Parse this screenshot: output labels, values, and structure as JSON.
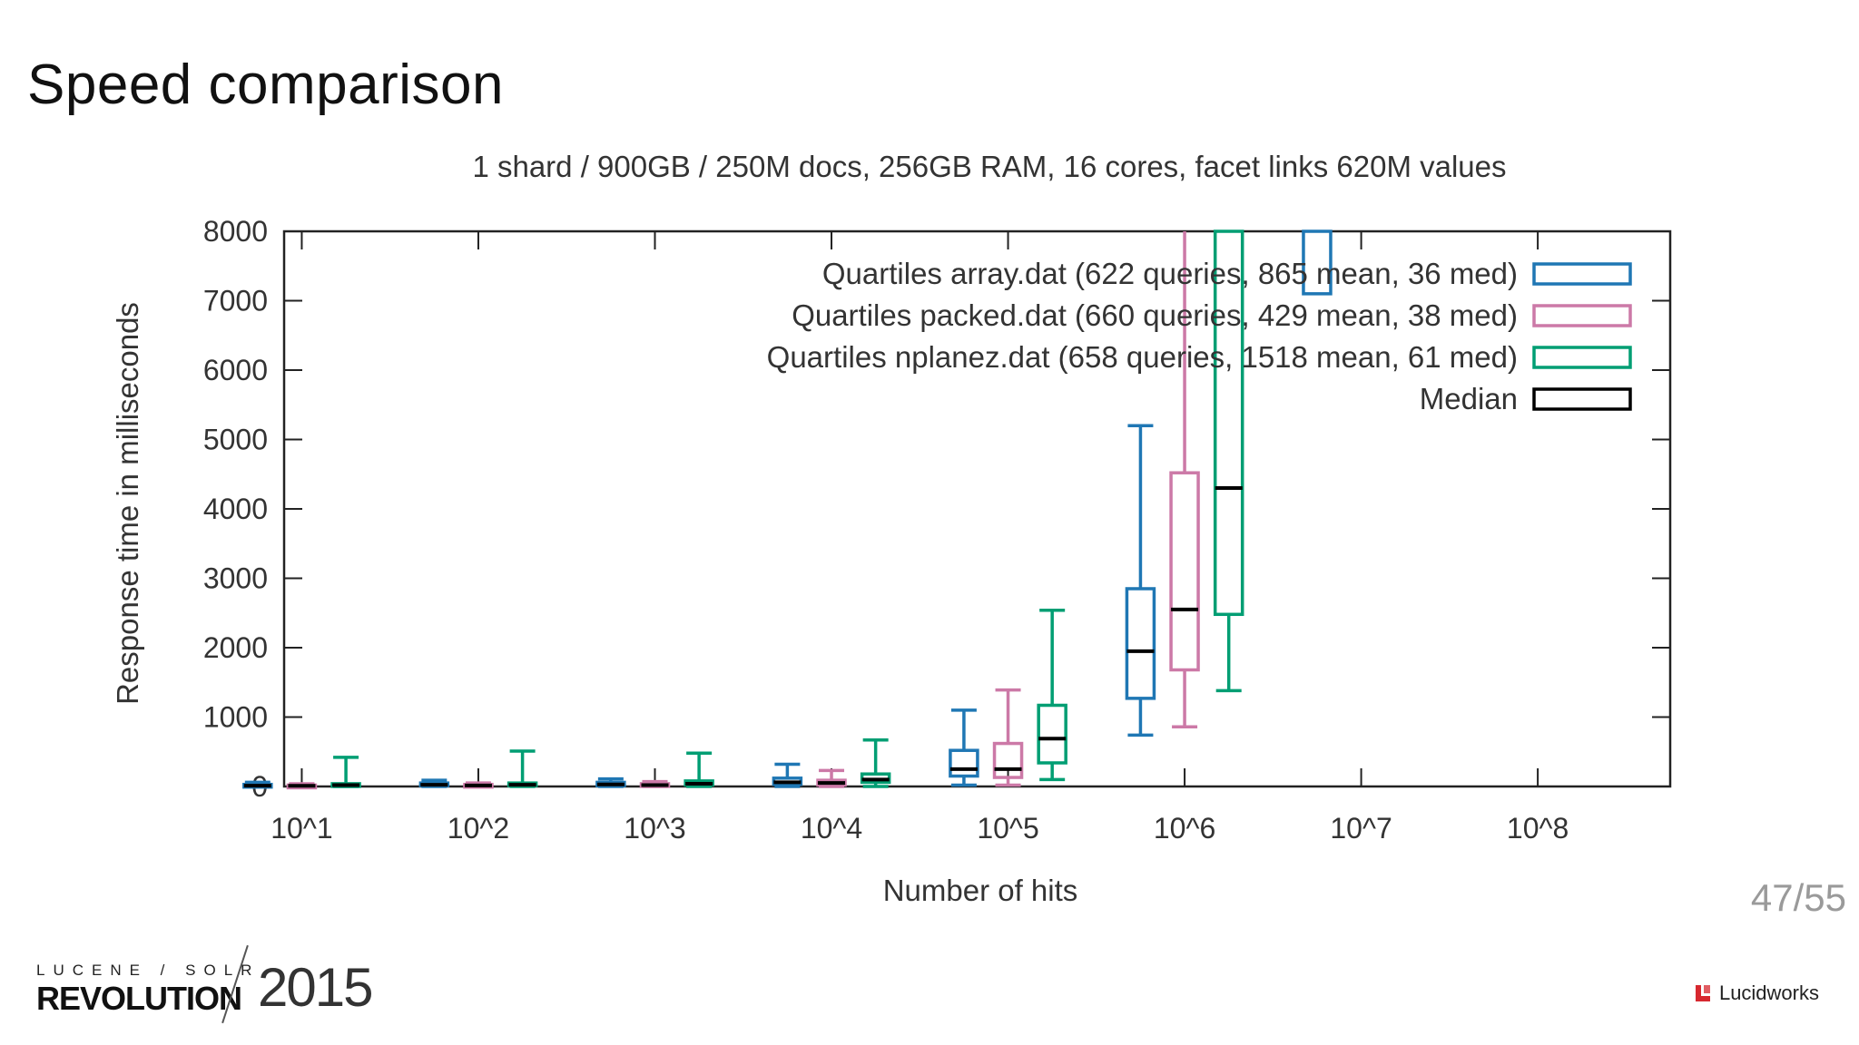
{
  "slide": {
    "title": "Speed comparison",
    "page": "47/55"
  },
  "branding": {
    "conference_top": "LUCENE / SOLR",
    "conference_main": "REVOLUTION",
    "conference_year": "2015",
    "company": "Lucidworks",
    "company_color": "#d7282f"
  },
  "chart_data": {
    "type": "boxplot",
    "title": "1 shard / 900GB / 250M docs, 256GB RAM, 16 cores, facet links 620M values",
    "xlabel": "Number of hits",
    "ylabel": "Response time in milliseconds",
    "x_ticks": [
      "10^1",
      "10^2",
      "10^3",
      "10^4",
      "10^5",
      "10^6",
      "10^7",
      "10^8"
    ],
    "x_tick_exponents": [
      1,
      2,
      3,
      4,
      5,
      6,
      7,
      8
    ],
    "y_ticks": [
      0,
      1000,
      2000,
      3000,
      4000,
      5000,
      6000,
      7000,
      8000
    ],
    "ylim": [
      0,
      8000
    ],
    "xlim_log10": [
      0.9,
      8.75
    ],
    "series": [
      {
        "name": "Quartiles array.dat (622 queries, 865 mean, 36 med)",
        "color": "#1f77b4",
        "offset": -0.25,
        "boxes": [
          {
            "x": 1,
            "min": 0,
            "q1": 5,
            "med": 12,
            "q3": 30,
            "max": 60
          },
          {
            "x": 2,
            "min": 0,
            "q1": 10,
            "med": 25,
            "q3": 50,
            "max": 90
          },
          {
            "x": 3,
            "min": 0,
            "q1": 10,
            "med": 30,
            "q3": 60,
            "max": 110
          },
          {
            "x": 4,
            "min": 0,
            "q1": 30,
            "med": 60,
            "q3": 120,
            "max": 320
          },
          {
            "x": 5,
            "min": 20,
            "q1": 150,
            "med": 250,
            "q3": 520,
            "max": 1100
          },
          {
            "x": 6,
            "min": 740,
            "q1": 1270,
            "med": 1950,
            "q3": 2850,
            "max": 5200
          },
          {
            "x": 7,
            "min": 7100,
            "q1": 7100,
            "med": 8000,
            "q3": 8000,
            "max": 8000
          }
        ]
      },
      {
        "name": "Quartiles packed.dat (660 queries, 429 mean, 38 med)",
        "color": "#cc79a7",
        "offset": 0,
        "boxes": [
          {
            "x": 1,
            "min": 0,
            "q1": 5,
            "med": 10,
            "q3": 20,
            "max": 40
          },
          {
            "x": 2,
            "min": 0,
            "q1": 5,
            "med": 15,
            "q3": 30,
            "max": 50
          },
          {
            "x": 3,
            "min": 0,
            "q1": 10,
            "med": 20,
            "q3": 40,
            "max": 70
          },
          {
            "x": 4,
            "min": 0,
            "q1": 20,
            "med": 50,
            "q3": 90,
            "max": 230
          },
          {
            "x": 5,
            "min": 20,
            "q1": 130,
            "med": 250,
            "q3": 620,
            "max": 1390
          },
          {
            "x": 6,
            "min": 860,
            "q1": 1680,
            "med": 2550,
            "q3": 4520,
            "max": 8000
          }
        ]
      },
      {
        "name": "Quartiles nplanez.dat (658 queries, 1518 mean, 61 med)",
        "color": "#009e73",
        "offset": 0.25,
        "boxes": [
          {
            "x": 1,
            "min": 0,
            "q1": 10,
            "med": 20,
            "q3": 40,
            "max": 420
          },
          {
            "x": 2,
            "min": 0,
            "q1": 10,
            "med": 25,
            "q3": 50,
            "max": 510
          },
          {
            "x": 3,
            "min": 0,
            "q1": 20,
            "med": 40,
            "q3": 80,
            "max": 480
          },
          {
            "x": 4,
            "min": 0,
            "q1": 60,
            "med": 100,
            "q3": 180,
            "max": 670
          },
          {
            "x": 5,
            "min": 100,
            "q1": 340,
            "med": 690,
            "q3": 1170,
            "max": 2540
          },
          {
            "x": 6,
            "min": 1380,
            "q1": 2480,
            "med": 4300,
            "q3": 8000,
            "max": 8000
          }
        ]
      }
    ],
    "legend": {
      "position": "top-right",
      "median_label": "Median",
      "median_color": "#000000"
    }
  }
}
